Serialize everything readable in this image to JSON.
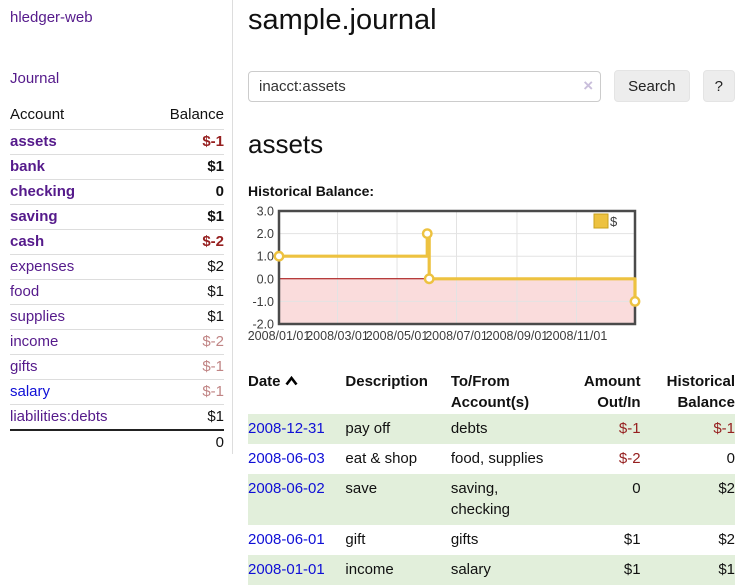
{
  "colors": {
    "purple": "#551a8b",
    "blue": "#0f0fd6",
    "negs": "#962020",
    "negw": "#c08484",
    "stripe": "#e2efdb",
    "chart_line": "#edc240",
    "chart_marker_fill": "#ffffff",
    "chart_neg_fill": "#fadcdc",
    "chart_zero_line": "#a40000",
    "chart_border": "#4a4a4a",
    "chart_grid": "#e3e3e3",
    "chart_tick_text": "#3c3c3c"
  },
  "sidebar": {
    "app_title": "hledger-web",
    "journal_link": "Journal",
    "table": {
      "headers": [
        "Account",
        "Balance"
      ],
      "rows": [
        {
          "account": "assets",
          "balance": "$-1",
          "level": 1,
          "bold": true
        },
        {
          "account": "bank",
          "balance": "$1",
          "level": 2,
          "bold": true
        },
        {
          "account": "checking",
          "balance": "0",
          "level": 3,
          "bold": true
        },
        {
          "account": "saving",
          "balance": "$1",
          "level": 3,
          "bold": true
        },
        {
          "account": "cash",
          "balance": "$-2",
          "level": 2,
          "bold": true
        },
        {
          "account": "expenses",
          "balance": "$2",
          "level": 1,
          "bold": false
        },
        {
          "account": "food",
          "balance": "$1",
          "level": 2,
          "bold": false
        },
        {
          "account": "supplies",
          "balance": "$1",
          "level": 2,
          "bold": false
        },
        {
          "account": "income",
          "balance": "$-2",
          "level": 1,
          "bold": false
        },
        {
          "account": "gifts",
          "balance": "$-1",
          "level": 2,
          "bold": false
        },
        {
          "account": "salary",
          "balance": "$-1",
          "level": 2,
          "bold": false,
          "blue": true
        },
        {
          "account": "liabilities:debts",
          "balance": "$1",
          "level": 1,
          "bold": false
        }
      ],
      "total": "0"
    }
  },
  "header": {
    "title": "sample.journal"
  },
  "search": {
    "value": "inacct:assets",
    "clear_icon": "×",
    "button_label": "Search",
    "help_label": "?"
  },
  "account_page": {
    "heading": "assets",
    "chart_label": "Historical Balance:"
  },
  "chart_data": {
    "type": "line",
    "step": true,
    "title": "Historical Balance",
    "series": [
      {
        "name": "$",
        "points": [
          {
            "date": "2008-01-01",
            "value": 1
          },
          {
            "date": "2008-06-01",
            "value": 2
          },
          {
            "date": "2008-06-03",
            "value": 0
          },
          {
            "date": "2008-12-31",
            "value": -1
          }
        ]
      }
    ],
    "x_range": [
      "2008-01-01",
      "2008-12-31"
    ],
    "ylim": [
      -2.0,
      3.0
    ],
    "yticks": [
      "3.0",
      "2.0",
      "1.0",
      "0.0",
      "-1.0",
      "-2.0"
    ],
    "xticks": [
      "2008/01/01",
      "2008/03/01",
      "2008/05/01",
      "2008/07/01",
      "2008/09/01",
      "2008/11/01"
    ],
    "legend": "$",
    "legend_position": "top-right",
    "grid": true,
    "negative_region_shaded": true
  },
  "transactions": {
    "headers": [
      "Date",
      "Description",
      "To/From Account(s)",
      "Amount Out/In",
      "Historical Balance"
    ],
    "rows": [
      {
        "date": "2008-12-31",
        "description": "pay off",
        "accounts": "debts",
        "amount": "$-1",
        "balance": "$-1"
      },
      {
        "date": "2008-06-03",
        "description": "eat & shop",
        "accounts": "food, supplies",
        "amount": "$-2",
        "balance": "0"
      },
      {
        "date": "2008-06-02",
        "description": "save",
        "accounts": "saving, checking",
        "amount": "0",
        "balance": "$2"
      },
      {
        "date": "2008-06-01",
        "description": "gift",
        "accounts": "gifts",
        "amount": "$1",
        "balance": "$2"
      },
      {
        "date": "2008-01-01",
        "description": "income",
        "accounts": "salary",
        "amount": "$1",
        "balance": "$1"
      }
    ]
  }
}
